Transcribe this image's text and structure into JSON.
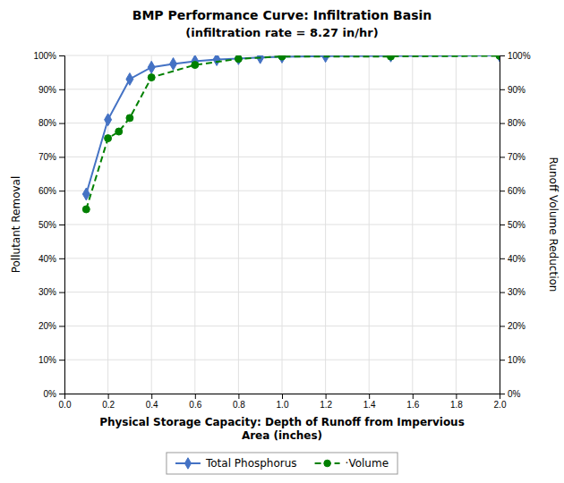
{
  "chart_data": {
    "type": "line",
    "title": "BMP Performance Curve: Infiltration Basin",
    "subtitle": "(infiltration rate = 8.27 in/hr)",
    "xlabel": "Physical Storage Capacity: Depth of Runoff from Impervious\nArea (inches)",
    "ylabel": "Pollutant Removal",
    "y2label": "Runoff Volume Reduction",
    "xlim": [
      0.0,
      2.0
    ],
    "ylim": [
      0.0,
      1.0
    ],
    "y2lim": [
      0.0,
      1.0
    ],
    "xticks": [
      {
        "value": 0.0,
        "label": "0.0"
      },
      0.2,
      0.4,
      0.6,
      0.8,
      {
        "value": 1.0,
        "label": "1.0"
      },
      1.2,
      1.4,
      1.6,
      1.8,
      {
        "value": 2.0,
        "label": "2.0"
      }
    ],
    "yticks": [
      {
        "value": 0.0,
        "label": "0%"
      },
      {
        "value": 0.1,
        "label": "10%"
      },
      {
        "value": 0.2,
        "label": "20%"
      },
      {
        "value": 0.3,
        "label": "30%"
      },
      {
        "value": 0.4,
        "label": "40%"
      },
      {
        "value": 0.5,
        "label": "50%"
      },
      {
        "value": 0.6,
        "label": "60%"
      },
      {
        "value": 0.7,
        "label": "70%"
      },
      {
        "value": 0.8,
        "label": "80%"
      },
      {
        "value": 0.9,
        "label": "90%"
      },
      {
        "value": 1.0,
        "label": "100%"
      }
    ],
    "y2ticks": [
      {
        "value": 0.0,
        "label": "0%"
      },
      {
        "value": 0.1,
        "label": "10%"
      },
      {
        "value": 0.2,
        "label": "20%"
      },
      {
        "value": 0.3,
        "label": "30%"
      },
      {
        "value": 0.4,
        "label": "40%"
      },
      {
        "value": 0.5,
        "label": "50%"
      },
      {
        "value": 0.6,
        "label": "60%"
      },
      {
        "value": 0.7,
        "label": "70%"
      },
      {
        "value": 0.8,
        "label": "80%"
      },
      {
        "value": 0.9,
        "label": "90%"
      },
      {
        "value": 1.0,
        "label": "100%"
      }
    ],
    "grid": true,
    "legend": "bottom",
    "series": [
      {
        "name": "Total Phosphorus",
        "color": "#4472C4",
        "marker": "diamond",
        "line_style": "solid",
        "x": [
          0.1,
          0.2,
          0.3,
          0.4,
          0.5,
          0.6,
          0.7,
          0.8,
          0.9,
          1.0,
          1.2,
          1.5,
          2.0
        ],
        "values": [
          0.59,
          0.81,
          0.93,
          0.965,
          0.975,
          0.983,
          0.988,
          0.991,
          0.994,
          0.996,
          0.998,
          0.999,
          1.0
        ]
      },
      {
        "name": "·Volume",
        "color": "#008000",
        "marker": "circle",
        "line_style": "dashed",
        "x": [
          0.1,
          0.2,
          0.25,
          0.3,
          0.4,
          0.6,
          0.8,
          1.0,
          1.5,
          2.0
        ],
        "values": [
          0.545,
          0.755,
          0.775,
          0.815,
          0.935,
          0.972,
          0.99,
          0.997,
          0.997,
          0.999
        ]
      }
    ]
  }
}
